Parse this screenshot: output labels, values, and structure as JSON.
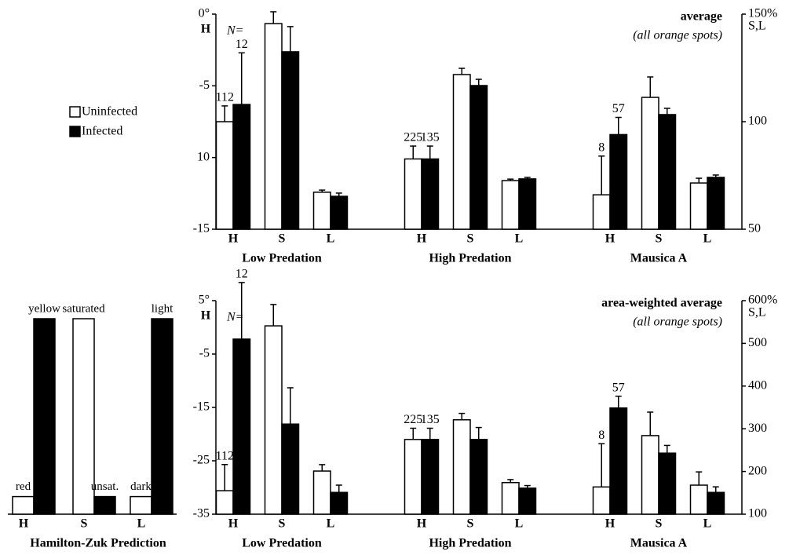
{
  "chart_data": [
    {
      "type": "bar",
      "title": "average",
      "subtitle": "(all orange spots)",
      "ylabel": "H",
      "y2label": "S,L",
      "n_label": "N=",
      "categories": [
        "H",
        "S",
        "L"
      ],
      "category_axes": [
        "y",
        "y2",
        "y2"
      ],
      "groups": [
        "Low Predation",
        "High Predation",
        "Mausica A"
      ],
      "ylim": [
        -15,
        0
      ],
      "yticks": [
        {
          "value": 0,
          "label": "0°"
        },
        -5,
        {
          "value": -10,
          "label": "10"
        },
        -15
      ],
      "y2lim": [
        50,
        150
      ],
      "y2ticks": [
        {
          "value": 150,
          "label": "150%"
        },
        100,
        50
      ],
      "legend": true,
      "series": [
        {
          "name": "Uninfected",
          "color": "#ffffff",
          "values": [
            [
              -7.5,
              145.6,
              67.2
            ],
            [
              -10.1,
              121.9,
              72.6
            ],
            [
              -12.6,
              111.3,
              71.5
            ]
          ],
          "errors": [
            [
              1.1,
              5.5,
              1
            ],
            [
              0.9,
              2.9,
              0.7
            ],
            [
              2.7,
              9.5,
              2.2
            ]
          ],
          "n": [
            112,
            225,
            8
          ]
        },
        {
          "name": "Infected",
          "color": "#000000",
          "values": [
            [
              -6.3,
              132.5,
              65.3
            ],
            [
              -10.1,
              116.8,
              73.4
            ],
            [
              -8.4,
              103.3,
              74.1
            ]
          ],
          "errors": [
            [
              3.6,
              11.7,
              1.5
            ],
            [
              0.9,
              2.9,
              0.7
            ],
            [
              1.2,
              2.9,
              1.1
            ]
          ],
          "n": [
            12,
            135,
            57
          ]
        }
      ]
    },
    {
      "type": "bar",
      "title": "Hamilton-Zuk Prediction",
      "categories": [
        "H",
        "S",
        "L"
      ],
      "ylim": [
        0,
        100
      ],
      "series": [
        {
          "color": "#ffffff",
          "values": [
            9,
            100,
            9
          ],
          "labels": [
            "red",
            "saturated",
            "dark"
          ]
        },
        {
          "color": "#000000",
          "values": [
            100,
            9,
            100
          ],
          "labels": [
            "yellow",
            "unsat.",
            "light"
          ]
        }
      ]
    },
    {
      "type": "bar",
      "title": "area-weighted average",
      "subtitle": "(all orange spots)",
      "ylabel": "H",
      "y2label": "S,L",
      "n_label": "N=",
      "categories": [
        "H",
        "S",
        "L"
      ],
      "category_axes": [
        "y",
        "y2",
        "y2"
      ],
      "groups": [
        "Low Predation",
        "High Predation",
        "Mausica A"
      ],
      "ylim": [
        -35,
        5
      ],
      "yticks": [
        {
          "value": 5,
          "label": "5°"
        },
        -5,
        -15,
        -25,
        -35
      ],
      "y2lim": [
        100,
        600
      ],
      "y2ticks": [
        {
          "value": 600,
          "label": "600%"
        },
        500,
        400,
        300,
        200,
        100
      ],
      "series": [
        {
          "color": "#ffffff",
          "values": [
            [
              -30.6,
              541,
              201
            ],
            [
              -21.0,
              321,
              174
            ],
            [
              -29.9,
              284,
              168
            ]
          ],
          "errors": [
            [
              4.9,
              50,
              15
            ],
            [
              2.1,
              15,
              7
            ],
            [
              8.1,
              55,
              31
            ]
          ],
          "n": [
            112,
            225,
            8
          ]
        },
        {
          "color": "#000000",
          "values": [
            [
              -2.2,
              311,
              151
            ],
            [
              -21.0,
              275,
              161
            ],
            [
              -15.1,
              243,
              151
            ]
          ],
          "errors": [
            [
              10.6,
              85,
              17
            ],
            [
              2.1,
              28,
              6
            ],
            [
              2.2,
              18,
              13
            ]
          ],
          "n": [
            12,
            135,
            57
          ]
        }
      ]
    }
  ]
}
